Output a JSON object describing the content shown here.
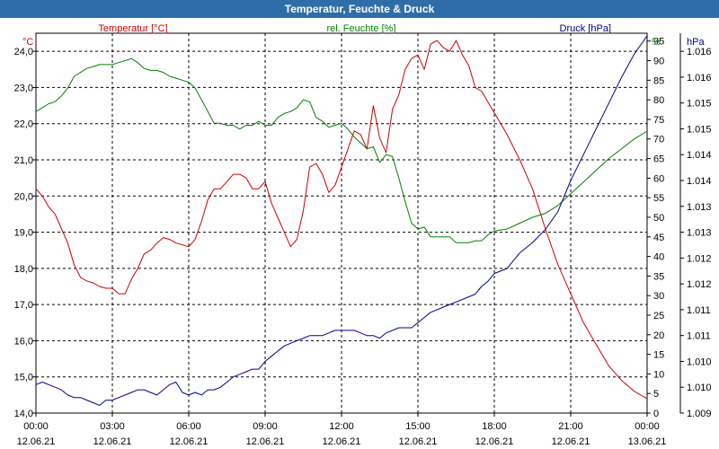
{
  "title": "Temperatur, Feuchte & Druck",
  "colors": {
    "titlebar": "#2e6da8",
    "temperature": "#cc0000",
    "humidity": "#008000",
    "pressure": "#00008b",
    "grid": "#000000",
    "axis": "#000000"
  },
  "chart_data": {
    "type": "line",
    "title": "Temperatur, Feuchte & Druck",
    "grid": true,
    "x_hours": [
      0,
      24
    ],
    "x_ticks": [
      {
        "h": 0,
        "time": "00:00",
        "date": "12.06.21"
      },
      {
        "h": 3,
        "time": "03:00",
        "date": "12.06.21"
      },
      {
        "h": 6,
        "time": "06:00",
        "date": "12.06.21"
      },
      {
        "h": 9,
        "time": "09:00",
        "date": "12.06.21"
      },
      {
        "h": 12,
        "time": "12:00",
        "date": "12.06.21"
      },
      {
        "h": 15,
        "time": "15:00",
        "date": "12.06.21"
      },
      {
        "h": 18,
        "time": "18:00",
        "date": "12.06.21"
      },
      {
        "h": 21,
        "time": "21:00",
        "date": "12.06.21"
      },
      {
        "h": 24,
        "time": "00:00",
        "date": "13.06.21"
      }
    ],
    "axes": {
      "temperature": {
        "label": "Temperatur [°C]",
        "unit": "°C",
        "range": [
          14.0,
          24.5
        ],
        "ticks": [
          "14,0",
          "15,0",
          "16,0",
          "17,0",
          "18,0",
          "19,0",
          "20,0",
          "21,0",
          "22,0",
          "23,0",
          "24,0"
        ]
      },
      "humidity": {
        "label": "rel. Feuchte [%]",
        "unit": "%",
        "range": [
          0,
          97
        ],
        "ticks": [
          "0",
          "5",
          "10",
          "15",
          "20",
          "25",
          "30",
          "35",
          "40",
          "45",
          "50",
          "55",
          "60",
          "65",
          "70",
          "75",
          "80",
          "85",
          "90",
          "95"
        ]
      },
      "pressure": {
        "label": "Druck [hPa]",
        "unit": "hPa",
        "range": [
          1009.0,
          1016.35
        ],
        "ticks": [
          "1.009",
          "1.010",
          "1.010",
          "1.011",
          "1.011",
          "1.012",
          "1.012",
          "1.013",
          "1.013",
          "1.014",
          "1.014",
          "1.015",
          "1.015",
          "1.016",
          "1.016"
        ]
      }
    },
    "series": [
      {
        "name": "Temperatur",
        "axis": "temperature",
        "x": [
          0,
          0.25,
          0.5,
          0.75,
          1,
          1.25,
          1.5,
          1.75,
          2,
          2.25,
          2.5,
          2.75,
          3,
          3.25,
          3.5,
          3.75,
          4,
          4.25,
          4.5,
          4.75,
          5,
          5.25,
          5.5,
          5.75,
          6,
          6.25,
          6.5,
          6.75,
          7,
          7.25,
          7.5,
          7.75,
          8,
          8.25,
          8.5,
          8.75,
          9,
          9.25,
          9.5,
          9.75,
          10,
          10.25,
          10.5,
          10.75,
          11,
          11.25,
          11.5,
          11.75,
          12,
          12.25,
          12.5,
          12.75,
          13,
          13.25,
          13.5,
          13.75,
          14,
          14.25,
          14.5,
          14.75,
          15,
          15.25,
          15.5,
          15.75,
          16,
          16.25,
          16.5,
          16.75,
          17,
          17.25,
          17.5,
          17.75,
          18,
          18.5,
          19,
          19.5,
          20,
          20.5,
          21,
          21.5,
          22,
          22.5,
          23,
          23.5,
          24
        ],
        "values": [
          20.2,
          20.0,
          19.7,
          19.5,
          19.1,
          18.7,
          18.1,
          17.75,
          17.65,
          17.6,
          17.5,
          17.45,
          17.45,
          17.3,
          17.3,
          17.7,
          18.0,
          18.4,
          18.5,
          18.7,
          18.85,
          18.8,
          18.7,
          18.65,
          18.6,
          18.8,
          19.3,
          19.9,
          20.2,
          20.2,
          20.4,
          20.6,
          20.6,
          20.5,
          20.2,
          20.2,
          20.4,
          19.8,
          19.4,
          19.0,
          18.6,
          18.8,
          19.6,
          20.8,
          20.9,
          20.6,
          20.1,
          20.3,
          20.8,
          21.3,
          21.8,
          21.7,
          21.3,
          22.5,
          21.6,
          21.2,
          22.4,
          22.8,
          23.5,
          23.8,
          23.9,
          23.5,
          24.2,
          24.3,
          24.1,
          24.0,
          24.3,
          23.9,
          23.6,
          23.0,
          22.9,
          22.6,
          22.3,
          21.7,
          21.0,
          20.2,
          19.1,
          18.1,
          17.3,
          16.5,
          15.9,
          15.3,
          14.9,
          14.6,
          14.4
        ]
      },
      {
        "name": "rel. Feuchte",
        "axis": "humidity",
        "x": [
          0,
          0.25,
          0.5,
          0.75,
          1,
          1.25,
          1.5,
          1.75,
          2,
          2.25,
          2.5,
          2.75,
          3,
          3.25,
          3.5,
          3.75,
          4,
          4.25,
          4.5,
          4.75,
          5,
          5.25,
          5.5,
          5.75,
          6,
          6.25,
          6.5,
          6.75,
          7,
          7.25,
          7.5,
          7.75,
          8,
          8.25,
          8.5,
          8.75,
          9,
          9.25,
          9.5,
          9.75,
          10,
          10.25,
          10.5,
          10.75,
          11,
          11.25,
          11.5,
          11.75,
          12,
          12.25,
          12.5,
          12.75,
          13,
          13.25,
          13.5,
          13.75,
          14,
          14.25,
          14.5,
          14.75,
          15,
          15.25,
          15.5,
          15.75,
          16,
          16.25,
          16.5,
          16.75,
          17,
          17.25,
          17.5,
          17.75,
          18,
          18.5,
          19,
          19.5,
          20,
          20.5,
          21,
          21.5,
          22,
          22.5,
          23,
          23.5,
          24
        ],
        "values": [
          77,
          78,
          79,
          79.5,
          81,
          83,
          86,
          87,
          88,
          88.5,
          89,
          89,
          89,
          89.5,
          90,
          90.5,
          89.5,
          88,
          87.5,
          87.5,
          87,
          86,
          85.5,
          85,
          84.5,
          83,
          80,
          77,
          74,
          74,
          73.5,
          73.5,
          72.5,
          73.5,
          73.5,
          74.5,
          73.5,
          73.5,
          75.5,
          76.5,
          77,
          78,
          80,
          79.5,
          75.5,
          74.5,
          73,
          73.5,
          74,
          72.5,
          70.5,
          69,
          67.5,
          68,
          64,
          66,
          65.5,
          60,
          54,
          48.5,
          47,
          47.5,
          45,
          45,
          45,
          45,
          43.5,
          43.5,
          43.5,
          44,
          44,
          45.5,
          46.5,
          47,
          48.5,
          50,
          51,
          53,
          56,
          59,
          62,
          65,
          67.5,
          70,
          72
        ]
      },
      {
        "name": "Druck",
        "axis": "pressure",
        "x": [
          0,
          0.25,
          0.5,
          0.75,
          1,
          1.25,
          1.5,
          1.75,
          2,
          2.25,
          2.5,
          2.75,
          3,
          3.25,
          3.5,
          3.75,
          4,
          4.25,
          4.5,
          4.75,
          5,
          5.25,
          5.5,
          5.75,
          6,
          6.25,
          6.5,
          6.75,
          7,
          7.25,
          7.5,
          7.75,
          8,
          8.25,
          8.5,
          8.75,
          9,
          9.25,
          9.5,
          9.75,
          10,
          10.25,
          10.5,
          10.75,
          11,
          11.25,
          11.5,
          11.75,
          12,
          12.25,
          12.5,
          12.75,
          13,
          13.25,
          13.5,
          13.75,
          14,
          14.25,
          14.5,
          14.75,
          15,
          15.25,
          15.5,
          15.75,
          16,
          16.25,
          16.5,
          16.75,
          17,
          17.25,
          17.5,
          17.75,
          18,
          18.5,
          19,
          19.5,
          20,
          20.5,
          21,
          21.5,
          22,
          22.5,
          23,
          23.5,
          24
        ],
        "values": [
          1009.55,
          1009.6,
          1009.55,
          1009.5,
          1009.45,
          1009.35,
          1009.3,
          1009.3,
          1009.25,
          1009.2,
          1009.15,
          1009.25,
          1009.25,
          1009.3,
          1009.35,
          1009.4,
          1009.45,
          1009.45,
          1009.4,
          1009.35,
          1009.45,
          1009.55,
          1009.6,
          1009.4,
          1009.35,
          1009.4,
          1009.35,
          1009.45,
          1009.45,
          1009.5,
          1009.6,
          1009.7,
          1009.75,
          1009.8,
          1009.85,
          1009.85,
          1010.0,
          1010.1,
          1010.2,
          1010.3,
          1010.35,
          1010.4,
          1010.45,
          1010.5,
          1010.5,
          1010.5,
          1010.55,
          1010.6,
          1010.6,
          1010.6,
          1010.6,
          1010.55,
          1010.5,
          1010.5,
          1010.45,
          1010.55,
          1010.6,
          1010.65,
          1010.65,
          1010.65,
          1010.75,
          1010.85,
          1010.95,
          1011.0,
          1011.05,
          1011.1,
          1011.15,
          1011.2,
          1011.25,
          1011.3,
          1011.45,
          1011.55,
          1011.7,
          1011.8,
          1012.1,
          1012.3,
          1012.55,
          1012.9,
          1013.5,
          1014.0,
          1014.5,
          1015.0,
          1015.5,
          1015.95,
          1016.3
        ]
      }
    ]
  }
}
